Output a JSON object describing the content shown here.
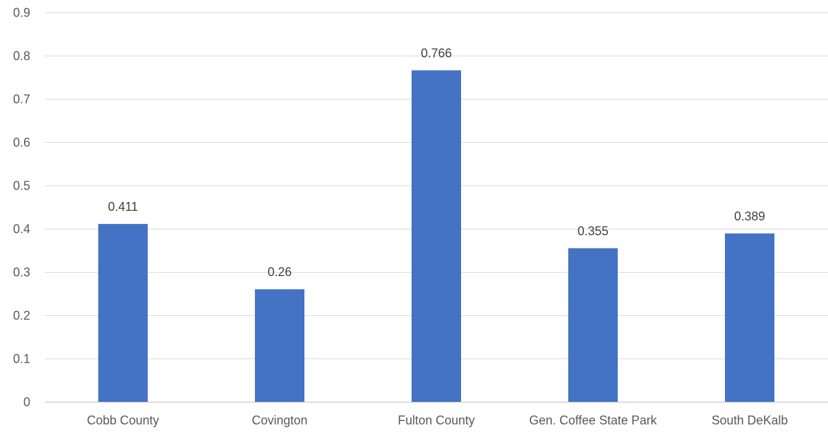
{
  "chart_data": {
    "type": "bar",
    "title": "",
    "xlabel": "",
    "ylabel": "",
    "categories": [
      "Cobb County",
      "Covington",
      "Fulton County",
      "Gen. Coffee State Park",
      "South DeKalb"
    ],
    "series": [
      {
        "values": [
          0.411,
          0.26,
          0.766,
          0.355,
          0.389
        ],
        "data_labels": [
          "0.411",
          "0.26",
          "0.766",
          "0.355",
          "0.389"
        ],
        "color": "#4472c4"
      }
    ],
    "ylim": [
      0,
      0.9
    ],
    "y_ticks": [
      0,
      0.1,
      0.2,
      0.3,
      0.4,
      0.5,
      0.6,
      0.7,
      0.8,
      0.9
    ],
    "y_tick_labels": [
      "0",
      "0.1",
      "0.2",
      "0.3",
      "0.4",
      "0.5",
      "0.6",
      "0.7",
      "0.8",
      "0.9"
    ],
    "grid": true,
    "legend": "none"
  }
}
